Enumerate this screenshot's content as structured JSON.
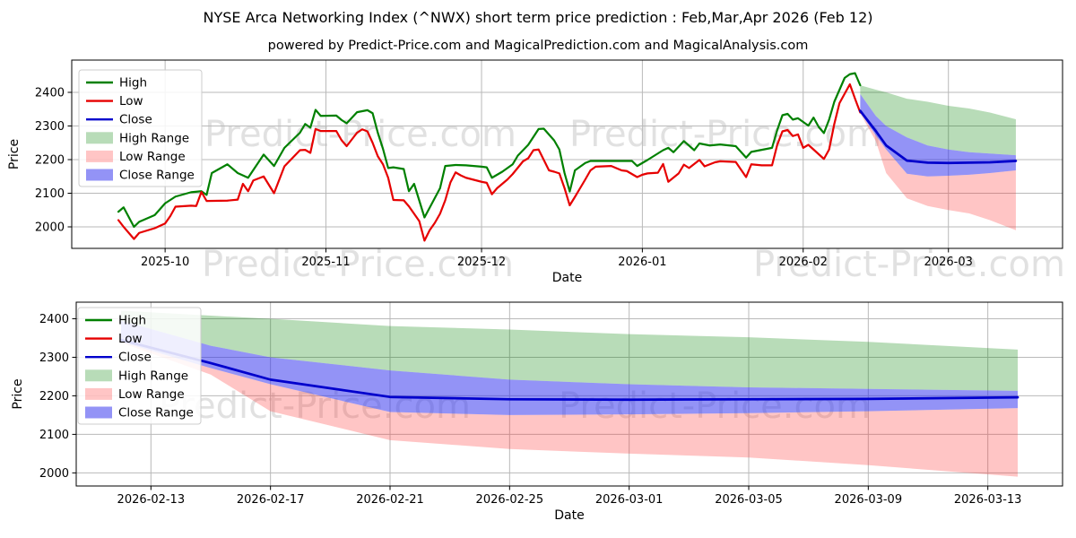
{
  "page": {
    "title": "NYSE Arca Networking Index (^NWX) short term price prediction : Feb,Mar,Apr 2026 (Feb 12)",
    "subtitle": "powered by Predict-Price.com and MagicalPrediction.com and MagicalAnalysis.com"
  },
  "watermark": {
    "text": "Predict-Price.com"
  },
  "colors": {
    "high": "#008000",
    "low": "#e60000",
    "close": "#0000cc",
    "high_range_fill": "rgba(0,128,0,0.28)",
    "low_range_fill": "rgba(255,40,40,0.27)",
    "close_range_fill": "rgba(48,48,238,0.52)",
    "grid": "#b9b9b9",
    "watermark": "rgba(90,90,90,0.18)"
  },
  "legend": [
    {
      "label": "High",
      "swatch": "line",
      "color_key": "high"
    },
    {
      "label": "Low",
      "swatch": "line",
      "color_key": "low"
    },
    {
      "label": "Close",
      "swatch": "line",
      "color_key": "close"
    },
    {
      "label": "High Range",
      "swatch": "patch",
      "color_key": "high_range_fill"
    },
    {
      "label": "Low Range",
      "swatch": "patch",
      "color_key": "low_range_fill"
    },
    {
      "label": "Close Range",
      "swatch": "patch",
      "color_key": "close_range_fill"
    }
  ],
  "chart_data": [
    {
      "type": "line",
      "title": "",
      "xlabel": "Date",
      "ylabel": "Price",
      "xlim": [
        "2025-09-13",
        "2026-03-23"
      ],
      "ylim": [
        1936,
        2496
      ],
      "grid": true,
      "legend_position": "upper left",
      "y_ticks": [
        2000,
        2100,
        2200,
        2300,
        2400
      ],
      "x_ticks": [
        {
          "date": "2025-10-01",
          "label": "2025-10"
        },
        {
          "date": "2025-11-01",
          "label": "2025-11"
        },
        {
          "date": "2025-12-01",
          "label": "2025-12"
        },
        {
          "date": "2026-01-01",
          "label": "2026-01"
        },
        {
          "date": "2026-02-01",
          "label": "2026-02"
        },
        {
          "date": "2026-03-01",
          "label": "2026-03"
        }
      ],
      "series": {
        "high": {
          "dates": [
            "2025-09-22",
            "2025-09-23",
            "2025-09-25",
            "2025-09-26",
            "2025-09-29",
            "2025-10-01",
            "2025-10-03",
            "2025-10-06",
            "2025-10-08",
            "2025-10-09",
            "2025-10-10",
            "2025-10-13",
            "2025-10-15",
            "2025-10-17",
            "2025-10-20",
            "2025-10-22",
            "2025-10-24",
            "2025-10-27",
            "2025-10-28",
            "2025-10-29",
            "2025-10-30",
            "2025-10-31",
            "2025-11-03",
            "2025-11-04",
            "2025-11-05",
            "2025-11-07",
            "2025-11-09",
            "2025-11-10",
            "2025-11-11",
            "2025-11-12",
            "2025-11-13",
            "2025-11-14",
            "2025-11-16",
            "2025-11-17",
            "2025-11-18",
            "2025-11-20",
            "2025-11-21",
            "2025-11-23",
            "2025-11-24",
            "2025-11-26",
            "2025-11-28",
            "2025-12-01",
            "2025-12-02",
            "2025-12-03",
            "2025-12-05",
            "2025-12-07",
            "2025-12-08",
            "2025-12-10",
            "2025-12-12",
            "2025-12-13",
            "2025-12-15",
            "2025-12-16",
            "2025-12-17",
            "2025-12-18",
            "2025-12-19",
            "2025-12-21",
            "2025-12-22",
            "2025-12-26",
            "2025-12-30",
            "2025-12-31",
            "2026-01-02",
            "2026-01-05",
            "2026-01-06",
            "2026-01-07",
            "2026-01-09",
            "2026-01-11",
            "2026-01-12",
            "2026-01-14",
            "2026-01-16",
            "2026-01-19",
            "2026-01-21",
            "2026-01-22",
            "2026-01-26",
            "2026-01-27",
            "2026-01-28",
            "2026-01-29",
            "2026-01-30",
            "2026-01-31",
            "2026-02-02",
            "2026-02-03",
            "2026-02-04",
            "2026-02-05",
            "2026-02-06",
            "2026-02-07",
            "2026-02-09",
            "2026-02-10",
            "2026-02-11",
            "2026-02-12"
          ],
          "values": [
            2045,
            2058,
            2000,
            2015,
            2035,
            2070,
            2090,
            2103,
            2106,
            2095,
            2160,
            2186,
            2160,
            2146,
            2215,
            2181,
            2235,
            2280,
            2306,
            2295,
            2348,
            2330,
            2331,
            2318,
            2308,
            2341,
            2347,
            2338,
            2280,
            2232,
            2175,
            2177,
            2172,
            2106,
            2128,
            2028,
            2057,
            2115,
            2181,
            2184,
            2183,
            2179,
            2177,
            2146,
            2164,
            2186,
            2212,
            2244,
            2291,
            2292,
            2257,
            2230,
            2160,
            2105,
            2168,
            2190,
            2196,
            2196,
            2196,
            2181,
            2199,
            2228,
            2235,
            2222,
            2255,
            2228,
            2248,
            2242,
            2245,
            2240,
            2206,
            2223,
            2235,
            2288,
            2332,
            2336,
            2319,
            2323,
            2301,
            2325,
            2297,
            2279,
            2319,
            2372,
            2443,
            2454,
            2457,
            2421
          ]
        },
        "low": {
          "dates": [
            "2025-09-22",
            "2025-09-23",
            "2025-09-25",
            "2025-09-26",
            "2025-09-29",
            "2025-10-01",
            "2025-10-02",
            "2025-10-03",
            "2025-10-06",
            "2025-10-07",
            "2025-10-08",
            "2025-10-09",
            "2025-10-13",
            "2025-10-15",
            "2025-10-16",
            "2025-10-17",
            "2025-10-18",
            "2025-10-20",
            "2025-10-22",
            "2025-10-24",
            "2025-10-27",
            "2025-10-28",
            "2025-10-29",
            "2025-10-30",
            "2025-10-31",
            "2025-11-03",
            "2025-11-04",
            "2025-11-05",
            "2025-11-07",
            "2025-11-08",
            "2025-11-09",
            "2025-11-10",
            "2025-11-11",
            "2025-11-12",
            "2025-11-13",
            "2025-11-14",
            "2025-11-16",
            "2025-11-17",
            "2025-11-19",
            "2025-11-20",
            "2025-11-21",
            "2025-11-22",
            "2025-11-23",
            "2025-11-24",
            "2025-11-25",
            "2025-11-26",
            "2025-11-27",
            "2025-11-28",
            "2025-12-01",
            "2025-12-02",
            "2025-12-03",
            "2025-12-04",
            "2025-12-06",
            "2025-12-07",
            "2025-12-09",
            "2025-12-10",
            "2025-12-11",
            "2025-12-12",
            "2025-12-14",
            "2025-12-15",
            "2025-12-16",
            "2025-12-17",
            "2025-12-18",
            "2025-12-19",
            "2025-12-20",
            "2025-12-21",
            "2025-12-22",
            "2025-12-23",
            "2025-12-26",
            "2025-12-28",
            "2025-12-29",
            "2025-12-31",
            "2026-01-01",
            "2026-01-02",
            "2026-01-04",
            "2026-01-05",
            "2026-01-06",
            "2026-01-08",
            "2026-01-09",
            "2026-01-10",
            "2026-01-12",
            "2026-01-13",
            "2026-01-15",
            "2026-01-16",
            "2026-01-19",
            "2026-01-21",
            "2026-01-22",
            "2026-01-24",
            "2026-01-26",
            "2026-01-27",
            "2026-01-28",
            "2026-01-29",
            "2026-01-30",
            "2026-01-31",
            "2026-02-01",
            "2026-02-02",
            "2026-02-03",
            "2026-02-05",
            "2026-02-06",
            "2026-02-07",
            "2026-02-08",
            "2026-02-10",
            "2026-02-11",
            "2026-02-12"
          ],
          "values": [
            2020,
            2000,
            1964,
            1982,
            1996,
            2010,
            2032,
            2060,
            2063,
            2062,
            2104,
            2077,
            2078,
            2081,
            2128,
            2106,
            2138,
            2150,
            2100,
            2180,
            2228,
            2229,
            2220,
            2291,
            2285,
            2285,
            2258,
            2240,
            2280,
            2290,
            2284,
            2250,
            2210,
            2186,
            2146,
            2080,
            2079,
            2061,
            2017,
            1959,
            1990,
            2012,
            2039,
            2079,
            2132,
            2162,
            2153,
            2146,
            2134,
            2131,
            2097,
            2115,
            2141,
            2157,
            2195,
            2204,
            2228,
            2230,
            2168,
            2164,
            2159,
            2115,
            2064,
            2089,
            2115,
            2141,
            2168,
            2179,
            2181,
            2168,
            2166,
            2148,
            2155,
            2159,
            2161,
            2187,
            2134,
            2159,
            2185,
            2175,
            2199,
            2180,
            2192,
            2195,
            2193,
            2148,
            2186,
            2183,
            2183,
            2244,
            2284,
            2288,
            2270,
            2275,
            2235,
            2244,
            2230,
            2202,
            2230,
            2306,
            2368,
            2424,
            2381,
            2340
          ]
        }
      },
      "prediction": {
        "dates": [
          "2026-02-12",
          "2026-02-15",
          "2026-02-17",
          "2026-02-21",
          "2026-02-25",
          "2026-03-01",
          "2026-03-05",
          "2026-03-09",
          "2026-03-14"
        ],
        "close": [
          2345,
          2285,
          2242,
          2197,
          2191,
          2190,
          2191,
          2192,
          2196
        ],
        "close_hi": [
          2395,
          2330,
          2300,
          2266,
          2242,
          2230,
          2222,
          2218,
          2213
        ],
        "close_lo": [
          2340,
          2272,
          2230,
          2158,
          2150,
          2152,
          2155,
          2160,
          2168
        ],
        "high_top": [
          2421,
          2408,
          2400,
          2381,
          2372,
          2360,
          2352,
          2340,
          2320
        ],
        "low_bot": [
          2338,
          2255,
          2160,
          2085,
          2062,
          2050,
          2040,
          2020,
          1990
        ]
      }
    },
    {
      "type": "line",
      "title": "",
      "xlabel": "Date",
      "ylabel": "Price",
      "xlim": [
        "2026-02-10T12:00:00Z",
        "2026-03-15T12:00:00Z"
      ],
      "ylim": [
        1966,
        2443
      ],
      "grid": true,
      "legend_position": "upper left",
      "y_ticks": [
        2000,
        2100,
        2200,
        2300,
        2400
      ],
      "x_ticks": [
        {
          "date": "2026-02-13",
          "label": "2026-02-13"
        },
        {
          "date": "2026-02-17",
          "label": "2026-02-17"
        },
        {
          "date": "2026-02-21",
          "label": "2026-02-21"
        },
        {
          "date": "2026-02-25",
          "label": "2026-02-25"
        },
        {
          "date": "2026-03-01",
          "label": "2026-03-01"
        },
        {
          "date": "2026-03-05",
          "label": "2026-03-05"
        },
        {
          "date": "2026-03-09",
          "label": "2026-03-09"
        },
        {
          "date": "2026-03-13",
          "label": "2026-03-13"
        }
      ],
      "prediction": {
        "dates": [
          "2026-02-12",
          "2026-02-15",
          "2026-02-17",
          "2026-02-21",
          "2026-02-25",
          "2026-03-01",
          "2026-03-05",
          "2026-03-09",
          "2026-03-14"
        ],
        "close": [
          2345,
          2285,
          2242,
          2197,
          2191,
          2190,
          2191,
          2192,
          2196
        ],
        "close_hi": [
          2395,
          2330,
          2300,
          2266,
          2242,
          2230,
          2222,
          2218,
          2213
        ],
        "close_lo": [
          2340,
          2272,
          2230,
          2158,
          2150,
          2152,
          2155,
          2160,
          2168
        ],
        "high_top": [
          2421,
          2408,
          2400,
          2381,
          2372,
          2360,
          2352,
          2340,
          2320
        ],
        "low_bot": [
          2338,
          2255,
          2160,
          2085,
          2062,
          2050,
          2040,
          2020,
          1990
        ]
      }
    }
  ]
}
